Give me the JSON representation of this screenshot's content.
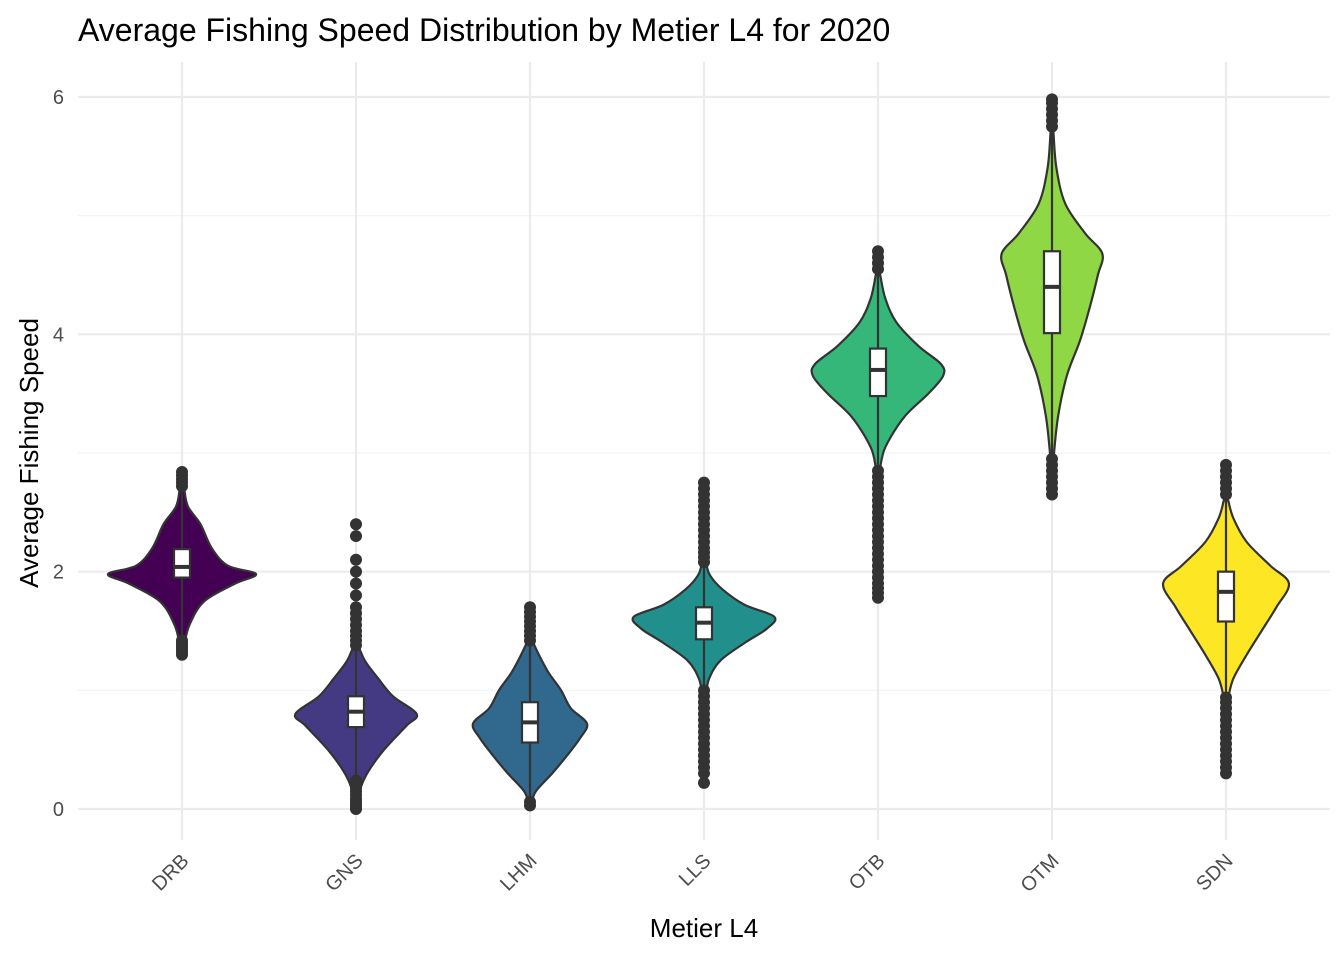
{
  "chart_data": {
    "type": "violin",
    "title": "Average Fishing Speed Distribution by Metier L4 for 2020",
    "xlabel": "Metier L4",
    "ylabel": "Average Fishing Speed",
    "ylim": [
      -0.25,
      6.3
    ],
    "y_ticks": [
      0,
      2,
      4,
      6
    ],
    "grid": true,
    "legend": "none",
    "categories": [
      "DRB",
      "GNS",
      "LHM",
      "LLS",
      "OTB",
      "OTM",
      "SDN"
    ],
    "series": [
      {
        "category": "DRB",
        "color": "#440154",
        "min": 1.35,
        "q1": 1.95,
        "median": 2.04,
        "q3": 2.19,
        "max": 2.7,
        "outliers": [
          1.3,
          1.32,
          1.34,
          1.36,
          1.38,
          1.4,
          1.42,
          2.72,
          2.75,
          2.78,
          2.81,
          2.84
        ],
        "density": [
          [
            1.38,
            0.03
          ],
          [
            1.55,
            0.1
          ],
          [
            1.75,
            0.3
          ],
          [
            1.9,
            0.72
          ],
          [
            1.98,
            1.0
          ],
          [
            2.05,
            0.62
          ],
          [
            2.2,
            0.4
          ],
          [
            2.4,
            0.25
          ],
          [
            2.55,
            0.08
          ],
          [
            2.7,
            0.03
          ]
        ]
      },
      {
        "category": "GNS",
        "color": "#443A83",
        "min": 0.28,
        "q1": 0.69,
        "median": 0.82,
        "q3": 0.95,
        "max": 1.35,
        "outliers": [
          0.0,
          0.01,
          0.03,
          0.05,
          0.07,
          0.09,
          0.12,
          0.15,
          0.18,
          0.21,
          0.24,
          1.38,
          1.42,
          1.46,
          1.5,
          1.55,
          1.6,
          1.65,
          1.7,
          1.8,
          1.9,
          2.0,
          2.1,
          2.3,
          2.4
        ],
        "density": [
          [
            0.02,
            0.03
          ],
          [
            0.15,
            0.05
          ],
          [
            0.3,
            0.15
          ],
          [
            0.5,
            0.38
          ],
          [
            0.7,
            0.68
          ],
          [
            0.8,
            0.82
          ],
          [
            0.95,
            0.5
          ],
          [
            1.1,
            0.3
          ],
          [
            1.25,
            0.12
          ],
          [
            1.38,
            0.03
          ]
        ]
      },
      {
        "category": "LHM",
        "color": "#31688E",
        "min": 0.1,
        "q1": 0.56,
        "median": 0.73,
        "q3": 0.9,
        "max": 1.4,
        "outliers": [
          0.03,
          0.06,
          1.42,
          1.46,
          1.5,
          1.54,
          1.58,
          1.62,
          1.66,
          1.7
        ],
        "density": [
          [
            0.05,
            0.02
          ],
          [
            0.15,
            0.08
          ],
          [
            0.3,
            0.3
          ],
          [
            0.45,
            0.5
          ],
          [
            0.6,
            0.68
          ],
          [
            0.72,
            0.77
          ],
          [
            0.85,
            0.55
          ],
          [
            1.0,
            0.42
          ],
          [
            1.15,
            0.25
          ],
          [
            1.3,
            0.12
          ],
          [
            1.42,
            0.03
          ]
        ]
      },
      {
        "category": "LLS",
        "color": "#21908C",
        "min": 1.02,
        "q1": 1.43,
        "median": 1.57,
        "q3": 1.7,
        "max": 2.05,
        "outliers": [
          0.22,
          0.3,
          0.35,
          0.4,
          0.45,
          0.5,
          0.55,
          0.6,
          0.65,
          0.7,
          0.75,
          0.8,
          0.85,
          0.9,
          0.95,
          1.0,
          2.08,
          2.12,
          2.16,
          2.2,
          2.25,
          2.3,
          2.35,
          2.4,
          2.45,
          2.5,
          2.55,
          2.6,
          2.65,
          2.7,
          2.75
        ],
        "density": [
          [
            0.98,
            0.03
          ],
          [
            1.1,
            0.07
          ],
          [
            1.25,
            0.22
          ],
          [
            1.4,
            0.55
          ],
          [
            1.52,
            0.85
          ],
          [
            1.62,
            0.95
          ],
          [
            1.72,
            0.55
          ],
          [
            1.85,
            0.25
          ],
          [
            1.97,
            0.08
          ],
          [
            2.07,
            0.03
          ]
        ]
      },
      {
        "category": "OTB",
        "color": "#35B779",
        "min": 2.9,
        "q1": 3.48,
        "median": 3.7,
        "q3": 3.88,
        "max": 4.5,
        "outliers": [
          1.78,
          1.82,
          1.86,
          1.9,
          1.95,
          2.0,
          2.05,
          2.1,
          2.15,
          2.2,
          2.25,
          2.3,
          2.35,
          2.4,
          2.45,
          2.5,
          2.55,
          2.6,
          2.65,
          2.7,
          2.75,
          2.8,
          2.85,
          4.55,
          4.6,
          4.65,
          4.7
        ],
        "density": [
          [
            2.88,
            0.03
          ],
          [
            3.05,
            0.1
          ],
          [
            3.3,
            0.35
          ],
          [
            3.5,
            0.68
          ],
          [
            3.65,
            0.88
          ],
          [
            3.75,
            0.85
          ],
          [
            3.9,
            0.55
          ],
          [
            4.1,
            0.25
          ],
          [
            4.3,
            0.1
          ],
          [
            4.5,
            0.03
          ]
        ]
      },
      {
        "category": "OTM",
        "color": "#8FD744",
        "min": 3.0,
        "q1": 4.01,
        "median": 4.4,
        "q3": 4.7,
        "max": 5.7,
        "outliers": [
          2.65,
          2.7,
          2.75,
          2.8,
          2.85,
          2.9,
          2.95,
          5.75,
          5.8,
          5.85,
          5.9,
          5.95,
          5.98
        ],
        "density": [
          [
            2.95,
            0.02
          ],
          [
            3.3,
            0.08
          ],
          [
            3.65,
            0.2
          ],
          [
            3.95,
            0.38
          ],
          [
            4.25,
            0.52
          ],
          [
            4.5,
            0.62
          ],
          [
            4.68,
            0.68
          ],
          [
            4.85,
            0.45
          ],
          [
            5.1,
            0.18
          ],
          [
            5.4,
            0.06
          ],
          [
            5.7,
            0.02
          ]
        ]
      },
      {
        "category": "SDN",
        "color": "#FDE725",
        "min": 0.96,
        "q1": 1.58,
        "median": 1.83,
        "q3": 2.0,
        "max": 2.6,
        "outliers": [
          0.3,
          0.35,
          0.4,
          0.45,
          0.5,
          0.55,
          0.6,
          0.65,
          0.7,
          0.75,
          0.8,
          0.85,
          0.9,
          0.94,
          2.65,
          2.7,
          2.75,
          2.8,
          2.85,
          2.9
        ],
        "density": [
          [
            0.94,
            0.03
          ],
          [
            1.1,
            0.1
          ],
          [
            1.3,
            0.28
          ],
          [
            1.5,
            0.48
          ],
          [
            1.7,
            0.68
          ],
          [
            1.9,
            0.85
          ],
          [
            2.05,
            0.6
          ],
          [
            2.25,
            0.28
          ],
          [
            2.45,
            0.1
          ],
          [
            2.6,
            0.03
          ]
        ]
      }
    ]
  }
}
